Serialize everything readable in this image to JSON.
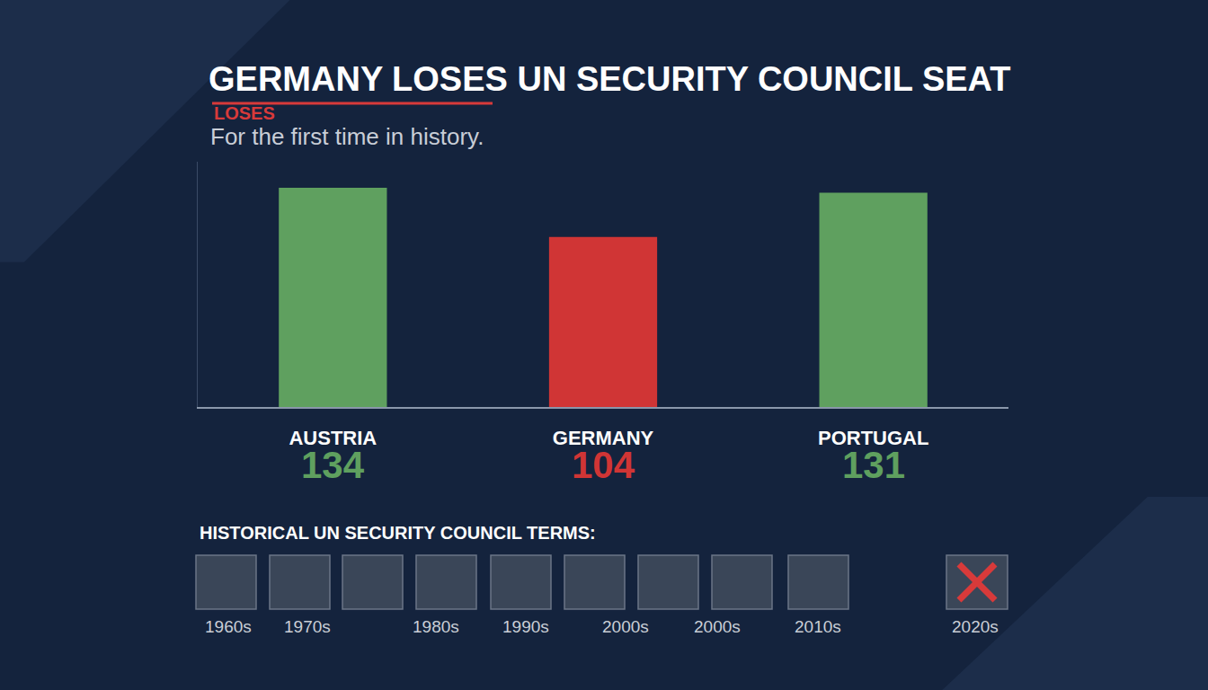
{
  "chart_data": {
    "type": "bar",
    "title": "GERMANY LOSES UN SECURITY COUNCIL SEAT",
    "subtitle": "For the first time in history.",
    "annotations": [
      "LOSES"
    ],
    "categories": [
      "AUSTRIA",
      "GERMANY",
      "PORTUGAL"
    ],
    "values": [
      134,
      104,
      131
    ],
    "colors": [
      "#5fa05f",
      "#d03535",
      "#5fa05f"
    ],
    "ylim": [
      0,
      150
    ],
    "grid": false,
    "data_labels": true,
    "tick_labels": "x"
  },
  "timeline": {
    "heading": "HISTORICAL UN SECURITY COUNCIL TERMS:",
    "labels": [
      "1960s",
      "1970s",
      "1980s",
      "1990s",
      "2000s",
      "2000s",
      "2010s",
      "2020s"
    ]
  }
}
